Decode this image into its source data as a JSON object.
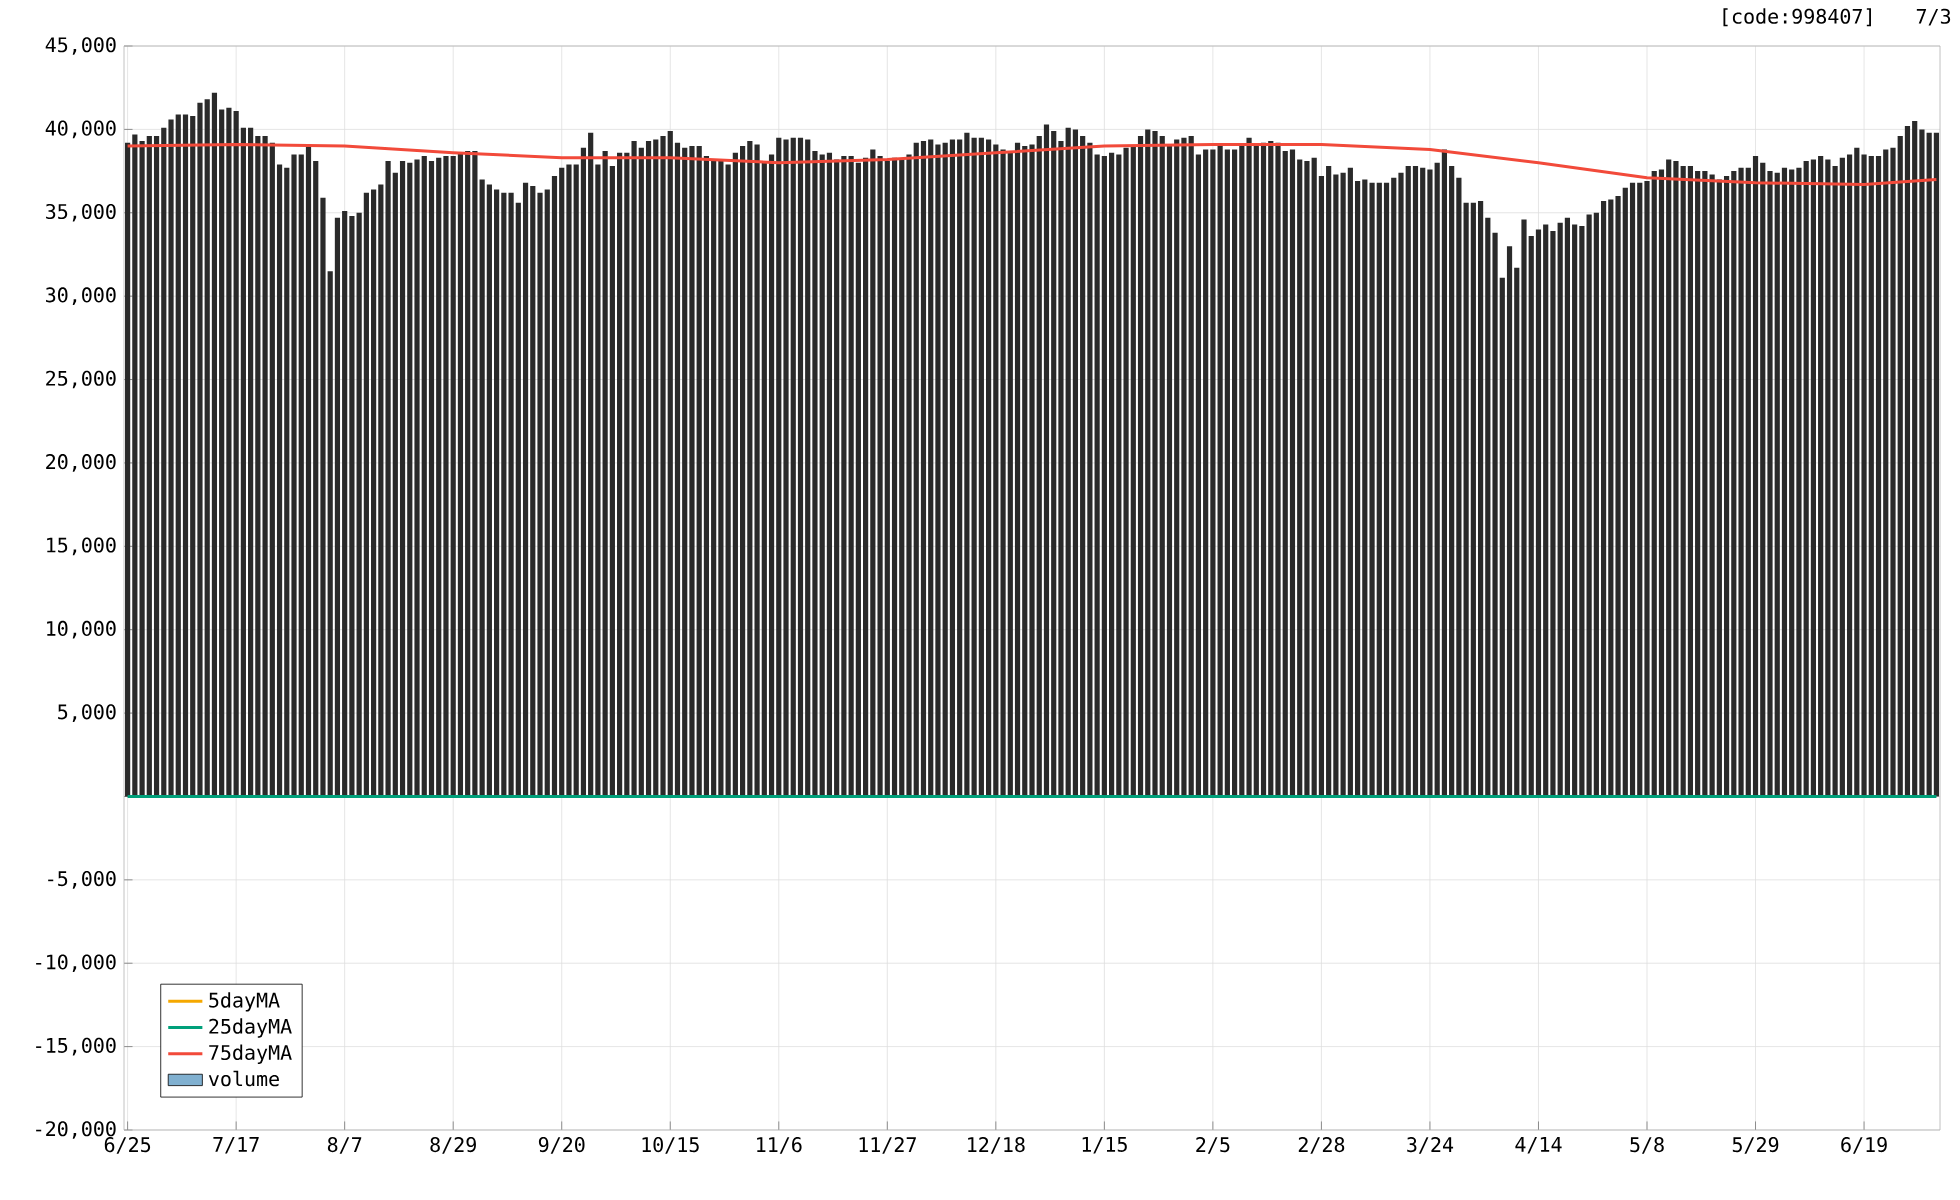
{
  "chart_data": {
    "type": "bar",
    "annotations": [
      "[code:998407]",
      "7/3"
    ],
    "categories": [
      "6/25",
      null,
      null,
      null,
      null,
      null,
      null,
      null,
      null,
      null,
      null,
      null,
      null,
      null,
      null,
      "7/17",
      null,
      null,
      null,
      null,
      null,
      null,
      null,
      null,
      null,
      null,
      null,
      null,
      null,
      null,
      "8/7",
      null,
      null,
      null,
      null,
      null,
      null,
      null,
      null,
      null,
      null,
      null,
      null,
      null,
      null,
      "8/29",
      null,
      null,
      null,
      null,
      null,
      null,
      null,
      null,
      null,
      null,
      null,
      null,
      null,
      null,
      "9/20",
      null,
      null,
      null,
      null,
      null,
      null,
      null,
      null,
      null,
      null,
      null,
      null,
      null,
      null,
      "10/15",
      null,
      null,
      null,
      null,
      null,
      null,
      null,
      null,
      null,
      null,
      null,
      null,
      null,
      null,
      "11/6",
      null,
      null,
      null,
      null,
      null,
      null,
      null,
      null,
      null,
      null,
      null,
      null,
      null,
      null,
      "11/27",
      null,
      null,
      null,
      null,
      null,
      null,
      null,
      null,
      null,
      null,
      null,
      null,
      null,
      null,
      "12/18",
      null,
      null,
      null,
      null,
      null,
      null,
      null,
      null,
      null,
      null,
      null,
      null,
      null,
      null,
      "1/15",
      null,
      null,
      null,
      null,
      null,
      null,
      null,
      null,
      null,
      null,
      null,
      null,
      null,
      null,
      "2/5",
      null,
      null,
      null,
      null,
      null,
      null,
      null,
      null,
      null,
      null,
      null,
      null,
      null,
      null,
      "2/28",
      null,
      null,
      null,
      null,
      null,
      null,
      null,
      null,
      null,
      null,
      null,
      null,
      null,
      null,
      "3/24",
      null,
      null,
      null,
      null,
      null,
      null,
      null,
      null,
      null,
      null,
      null,
      null,
      null,
      null,
      "4/14",
      null,
      null,
      null,
      null,
      null,
      null,
      null,
      null,
      null,
      null,
      null,
      null,
      null,
      null,
      "5/8",
      null,
      null,
      null,
      null,
      null,
      null,
      null,
      null,
      null,
      null,
      null,
      null,
      null,
      null,
      "5/29",
      null,
      null,
      null,
      null,
      null,
      null,
      null,
      null,
      null,
      null,
      null,
      null,
      null,
      null,
      "6/19",
      null,
      null,
      null,
      null,
      null,
      null,
      null,
      null,
      null,
      null
    ],
    "series": [
      {
        "color": "#2a2a2a",
        "values": [
          39200,
          39700,
          39300,
          39600,
          39600,
          40100,
          40600,
          40900,
          40900,
          40800,
          41600,
          41800,
          42200,
          41200,
          41300,
          41100,
          40100,
          40100,
          39600,
          39600,
          39200,
          37900,
          37700,
          38500,
          38500,
          39100,
          38100,
          35900,
          31500,
          34700,
          35100,
          34800,
          35000,
          36200,
          36400,
          36700,
          38100,
          37400,
          38100,
          38000,
          38200,
          38400,
          38100,
          38300,
          38400,
          38400,
          38600,
          38700,
          38700,
          37000,
          36700,
          36400,
          36200,
          36200,
          35600,
          36800,
          36600,
          36200,
          36400,
          37200,
          37700,
          37900,
          37900,
          38900,
          39800,
          37900,
          38700,
          37800,
          38600,
          38600,
          39300,
          38900,
          39300,
          39400,
          39600,
          39900,
          39200,
          38900,
          39000,
          39000,
          38400,
          38100,
          38100,
          37900,
          38600,
          39000,
          39300,
          39100,
          38100,
          38500,
          39500,
          39400,
          39500,
          39500,
          39400,
          38700,
          38500,
          38600,
          38200,
          38400,
          38400,
          38000,
          38300,
          38800,
          38400,
          38100,
          38300,
          38200,
          38500,
          39200,
          39300,
          39400,
          39100,
          39200,
          39400,
          39400,
          39800,
          39500,
          39500,
          39400,
          39100,
          38800,
          38700,
          39200,
          39000,
          39100,
          39600,
          40300,
          39900,
          39300,
          40100,
          40000,
          39600,
          39200,
          38500,
          38400,
          38600,
          38500,
          38900,
          39000,
          39600,
          40000,
          39900,
          39600,
          39000,
          39400,
          39500,
          39600,
          38500,
          38800,
          38800,
          39100,
          38800,
          38800,
          39000,
          39500,
          39100,
          39200,
          39300,
          39200,
          38700,
          38800,
          38200,
          38100,
          38300,
          37200,
          37800,
          37300,
          37400,
          37700,
          36900,
          37000,
          36800,
          36800,
          36800,
          37100,
          37400,
          37800,
          37800,
          37700,
          37600,
          38000,
          38800,
          37800,
          37100,
          35600,
          35600,
          35700,
          34700,
          33800,
          31100,
          33000,
          31700,
          34600,
          33600,
          34000,
          34300,
          33900,
          34400,
          34700,
          34300,
          34200,
          34900,
          35000,
          35700,
          35800,
          36000,
          36500,
          36800,
          36800,
          36900,
          37500,
          37600,
          38200,
          38100,
          37800,
          37800,
          37500,
          37500,
          37300,
          37000,
          37200,
          37500,
          37700,
          37700,
          38400,
          38000,
          37500,
          37400,
          37700,
          37600,
          37700,
          38100,
          38200,
          38400,
          38200,
          37800,
          38300,
          38500,
          38900,
          38500,
          38400,
          38400,
          38800,
          38900,
          39600,
          40200,
          40500,
          40000,
          39800,
          39800
        ]
      },
      {
        "type": "line",
        "name": "5dayMA",
        "color": "#f5a800",
        "values": [
          null,
          null,
          null,
          null,
          null,
          null,
          null,
          null,
          null,
          null,
          null,
          null,
          null,
          null,
          null,
          null,
          null,
          null,
          null,
          null,
          null,
          null,
          null,
          null,
          null,
          null,
          null,
          null,
          null,
          null,
          null,
          null,
          null,
          null,
          null,
          null,
          null,
          null,
          null,
          null,
          null,
          null,
          null,
          null,
          null,
          null,
          null,
          null,
          null,
          null,
          null,
          null,
          null,
          null,
          null,
          null,
          null,
          null,
          null,
          null,
          null,
          null,
          null,
          null,
          null,
          null,
          null,
          null,
          null,
          null,
          null,
          null,
          null,
          null,
          null,
          null,
          null,
          null,
          null,
          null,
          null,
          null,
          null,
          null,
          null,
          null,
          null,
          null,
          null,
          null,
          null,
          null,
          null,
          null,
          null,
          null,
          null,
          null,
          null,
          null,
          null,
          null,
          null,
          null,
          null,
          null,
          null,
          null,
          null,
          null,
          null,
          null,
          null,
          null,
          null,
          null,
          null,
          null,
          null,
          null,
          null,
          null,
          null,
          null,
          null,
          null,
          null,
          null,
          null,
          null,
          null,
          null,
          null,
          null,
          null,
          null,
          null,
          null,
          null,
          null,
          null,
          null,
          null,
          null,
          null,
          null,
          null,
          null,
          null,
          null,
          null,
          null,
          null,
          null,
          null,
          null,
          null,
          null,
          null,
          null,
          null,
          null,
          null,
          null,
          null,
          null,
          null,
          null,
          null,
          null,
          null,
          null,
          null,
          null,
          null,
          null,
          null,
          null,
          null,
          null,
          null,
          null,
          null,
          null,
          null,
          null,
          null,
          null,
          null,
          null,
          null,
          null,
          null,
          null,
          null,
          null,
          null,
          null,
          null,
          null,
          null,
          null,
          null,
          null,
          null,
          null,
          null,
          null,
          null,
          null,
          null,
          null,
          null,
          null,
          null,
          null,
          null,
          null,
          null,
          null,
          null,
          null,
          null,
          null,
          null,
          null,
          null,
          null,
          null,
          null,
          null,
          null,
          null,
          null,
          null,
          null,
          null,
          null,
          null,
          null,
          null,
          null,
          null,
          null,
          null,
          null,
          null,
          null,
          null,
          null,
          null
        ]
      },
      {
        "type": "line",
        "name": "25dayMA",
        "color": "#00a07a",
        "values": [
          0,
          null,
          null,
          null,
          null,
          null,
          null,
          null,
          null,
          null,
          null,
          null,
          null,
          null,
          null,
          null,
          null,
          null,
          null,
          null,
          null,
          null,
          null,
          null,
          null,
          null,
          null,
          null,
          null,
          null,
          null,
          null,
          null,
          null,
          null,
          null,
          null,
          null,
          null,
          null,
          null,
          null,
          null,
          null,
          null,
          null,
          null,
          null,
          null,
          null,
          null,
          null,
          null,
          null,
          null,
          null,
          null,
          null,
          null,
          null,
          null,
          null,
          null,
          null,
          null,
          null,
          null,
          null,
          null,
          null,
          null,
          null,
          null,
          null,
          null,
          null,
          null,
          null,
          null,
          null,
          null,
          null,
          null,
          null,
          null,
          null,
          null,
          null,
          null,
          null,
          null,
          null,
          null,
          null,
          null,
          null,
          null,
          null,
          null,
          null,
          null,
          null,
          null,
          null,
          null,
          null,
          null,
          null,
          null,
          null,
          null,
          null,
          null,
          null,
          null,
          null,
          null,
          null,
          null,
          null,
          null,
          null,
          null,
          null,
          null,
          null,
          null,
          null,
          null,
          null,
          null,
          null,
          null,
          null,
          null,
          null,
          null,
          null,
          null,
          null,
          null,
          null,
          null,
          null,
          null,
          null,
          null,
          null,
          null,
          null,
          null,
          null,
          null,
          null,
          null,
          null,
          null,
          null,
          null,
          null,
          null,
          null,
          null,
          null,
          null,
          null,
          null,
          null,
          null,
          null,
          null,
          null,
          null,
          null,
          null,
          null,
          null,
          null,
          null,
          null,
          null,
          null,
          null,
          null,
          null,
          null,
          null,
          null,
          null,
          null,
          null,
          null,
          null,
          null,
          null,
          null,
          null,
          null,
          null,
          null,
          null,
          null,
          null,
          null,
          null,
          null,
          null,
          null,
          null,
          null,
          null,
          null,
          null,
          null,
          null,
          null,
          null,
          null,
          null,
          null,
          null,
          null,
          null,
          null,
          null,
          null,
          null,
          null,
          null,
          null,
          null,
          null,
          null,
          null,
          null,
          null,
          null,
          null,
          null,
          null,
          null,
          null,
          null,
          null,
          null,
          null,
          null,
          null,
          null,
          null,
          0
        ]
      },
      {
        "type": "line",
        "name": "75dayMA",
        "color": "#f24a3a",
        "values": [
          39000,
          null,
          null,
          null,
          null,
          null,
          null,
          null,
          null,
          null,
          null,
          null,
          null,
          null,
          null,
          39100,
          null,
          null,
          null,
          null,
          null,
          null,
          null,
          null,
          null,
          null,
          null,
          null,
          null,
          null,
          39000,
          null,
          null,
          null,
          null,
          null,
          null,
          null,
          null,
          null,
          null,
          null,
          null,
          null,
          null,
          38600,
          null,
          null,
          null,
          null,
          null,
          null,
          null,
          null,
          null,
          null,
          null,
          null,
          null,
          null,
          38300,
          null,
          null,
          null,
          null,
          null,
          null,
          null,
          null,
          null,
          null,
          null,
          null,
          null,
          null,
          38300,
          null,
          null,
          null,
          null,
          null,
          null,
          null,
          null,
          null,
          null,
          null,
          null,
          null,
          null,
          38000,
          null,
          null,
          null,
          null,
          null,
          null,
          null,
          null,
          null,
          null,
          null,
          null,
          null,
          null,
          38200,
          null,
          null,
          null,
          null,
          null,
          null,
          null,
          null,
          null,
          null,
          null,
          null,
          null,
          null,
          38600,
          null,
          null,
          null,
          null,
          null,
          null,
          null,
          null,
          null,
          null,
          null,
          null,
          null,
          null,
          39000,
          null,
          null,
          null,
          null,
          null,
          null,
          null,
          null,
          null,
          null,
          null,
          null,
          null,
          null,
          39100,
          null,
          null,
          null,
          null,
          null,
          null,
          null,
          null,
          null,
          null,
          null,
          null,
          null,
          null,
          39100,
          null,
          null,
          null,
          null,
          null,
          null,
          null,
          null,
          null,
          null,
          null,
          null,
          null,
          null,
          38800,
          null,
          null,
          null,
          null,
          null,
          null,
          null,
          null,
          null,
          null,
          null,
          null,
          null,
          null,
          38000,
          null,
          null,
          null,
          null,
          null,
          null,
          null,
          null,
          null,
          null,
          null,
          null,
          null,
          null,
          37100,
          null,
          null,
          null,
          null,
          null,
          null,
          null,
          null,
          null,
          null,
          null,
          null,
          null,
          null,
          36800,
          null,
          null,
          null,
          null,
          null,
          null,
          null,
          null,
          null,
          null,
          null,
          null,
          null,
          null,
          36700,
          null,
          null,
          null,
          null,
          null,
          null,
          null,
          null,
          null,
          37000
        ]
      },
      {
        "type": "bar",
        "name": "volume",
        "color": "#80b0d0",
        "values": [
          null,
          null,
          null,
          null,
          null,
          null,
          null,
          null,
          null,
          null,
          null,
          null,
          null,
          null,
          null,
          null,
          null,
          null,
          null,
          null,
          null,
          null,
          null,
          null,
          null,
          null,
          null,
          null,
          null,
          null,
          null,
          null,
          null,
          null,
          null,
          null,
          null,
          null,
          null,
          null,
          null,
          null,
          null,
          null,
          null,
          null,
          null,
          null,
          null,
          null,
          null,
          null,
          null,
          null,
          null,
          null,
          null,
          null,
          null,
          null,
          null,
          null,
          null,
          null,
          null,
          null,
          null,
          null,
          null,
          null,
          null,
          null,
          null,
          null,
          null,
          null,
          null,
          null,
          null,
          null,
          null,
          null,
          null,
          null,
          null,
          null,
          null,
          null,
          null,
          null,
          null,
          null,
          null,
          null,
          null,
          null,
          null,
          null,
          null,
          null,
          null,
          null,
          null,
          null,
          null,
          null,
          null,
          null,
          null,
          null,
          null,
          null,
          null,
          null,
          null,
          null,
          null,
          null,
          null,
          null,
          null,
          null,
          null,
          null,
          null,
          null,
          null,
          null,
          null,
          null,
          null,
          null,
          null,
          null,
          null,
          null,
          null,
          null,
          null,
          null,
          null,
          null,
          null,
          null,
          null,
          null,
          null,
          null,
          null,
          null,
          null,
          null,
          null,
          null,
          null,
          null,
          null,
          null,
          null,
          null,
          null,
          null,
          null,
          null,
          null,
          null,
          null,
          null,
          null,
          null,
          null,
          null,
          null,
          null,
          null,
          null,
          null,
          null,
          null,
          null,
          null,
          null,
          null,
          null,
          null,
          null,
          null,
          null,
          null,
          null,
          null,
          null,
          null,
          null,
          null,
          null,
          null,
          null,
          null,
          null,
          null,
          null,
          null,
          null,
          null,
          null,
          null,
          null,
          null,
          null,
          null,
          null,
          null,
          null,
          null,
          null,
          null,
          null,
          null,
          null,
          null,
          null,
          null,
          null,
          null,
          null,
          null,
          null,
          null,
          null,
          null,
          null,
          null,
          null,
          null,
          null,
          null,
          null,
          null,
          null,
          null,
          null,
          null,
          null,
          null,
          null,
          null,
          null,
          null,
          null,
          null
        ]
      }
    ],
    "ylim": [
      -20000,
      45000
    ],
    "yticks": [
      {
        "value": -20000,
        "label": "-20,000"
      },
      {
        "value": -15000,
        "label": "-15,000"
      },
      {
        "value": -10000,
        "label": "-10,000"
      },
      {
        "value": -5000,
        "label": "-5,000"
      },
      {
        "value": 0,
        "label": null
      },
      {
        "value": 5000,
        "label": "5,000"
      },
      {
        "value": 10000,
        "label": "10,000"
      },
      {
        "value": 15000,
        "label": "15,000"
      },
      {
        "value": 20000,
        "label": "20,000"
      },
      {
        "value": 25000,
        "label": "25,000"
      },
      {
        "value": 30000,
        "label": "30,000"
      },
      {
        "value": 35000,
        "label": "35,000"
      },
      {
        "value": 40000,
        "label": "40,000"
      },
      {
        "value": 45000,
        "label": "45,000"
      }
    ],
    "grid": true,
    "legend": "bottom left",
    "marker": "none"
  }
}
